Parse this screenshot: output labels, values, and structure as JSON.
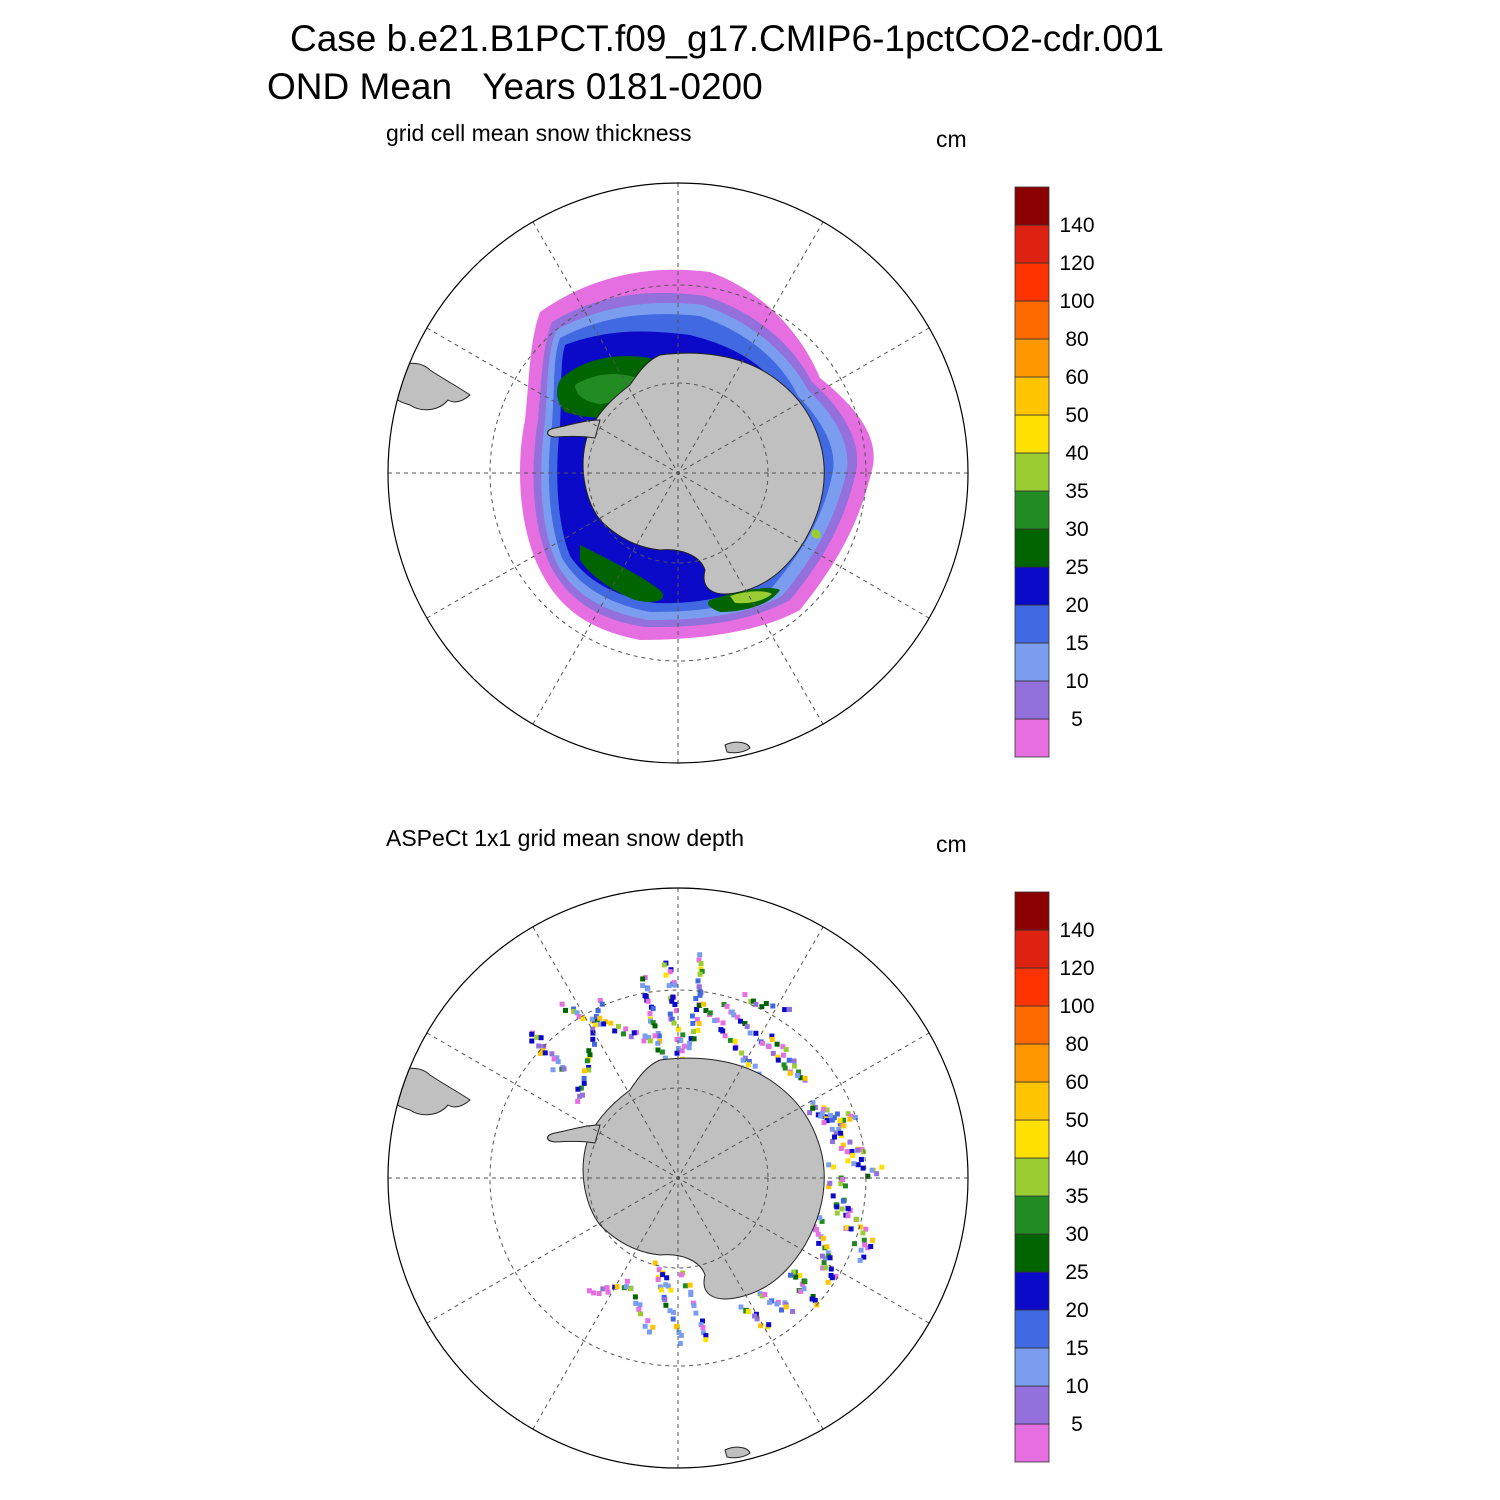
{
  "header": {
    "line1": "Case b.e21.B1PCT.f09_g17.CMIP6-1pctCO2-cdr.001",
    "line2": "OND Mean   Years 0181-0200"
  },
  "colorbar": {
    "labels": [
      "5",
      "10",
      "15",
      "20",
      "25",
      "30",
      "35",
      "40",
      "50",
      "60",
      "80",
      "100",
      "120",
      "140"
    ],
    "colors": [
      "#e56fe0",
      "#9370db",
      "#7b9df0",
      "#4169e1",
      "#0a0ac8",
      "#006400",
      "#228b22",
      "#9acd32",
      "#ffe000",
      "#ffc400",
      "#ff9800",
      "#ff6a00",
      "#ff3300",
      "#dd2211",
      "#8b0000"
    ]
  },
  "panels": [
    {
      "title": "grid cell mean snow thickness",
      "unit": "cm"
    },
    {
      "title": "ASPeCt 1x1 grid mean snow depth",
      "unit": "cm"
    }
  ],
  "map_colors": {
    "land": "#c0c0c0",
    "ocean": "#ffffff",
    "grid": "#555555"
  }
}
